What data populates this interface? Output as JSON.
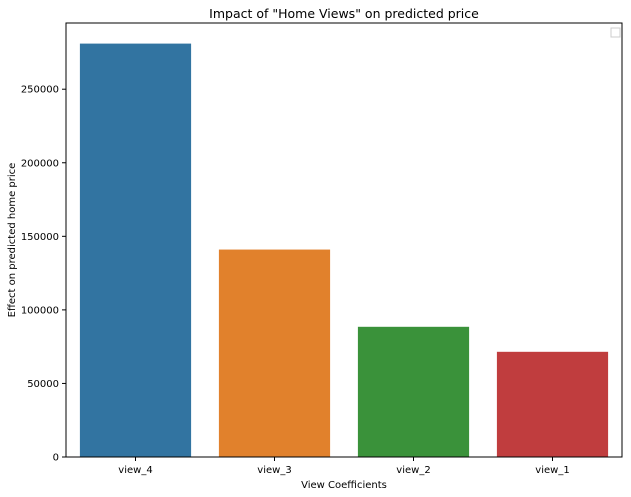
{
  "chart_data": {
    "type": "bar",
    "title": "Impact of \"Home Views\" on predicted price",
    "xlabel": "View Coefficients",
    "ylabel": "Effect on predicted home price",
    "categories": [
      "view_4",
      "view_3",
      "view_2",
      "view_1"
    ],
    "values": [
      281000,
      141000,
      88500,
      71500
    ],
    "colors": [
      "#3274a1",
      "#e1812c",
      "#3a923a",
      "#c03d3e"
    ],
    "ylim": [
      0,
      295000
    ],
    "yticks": [
      0,
      50000,
      100000,
      150000,
      200000,
      250000
    ],
    "ytick_labels": [
      "0",
      "50000",
      "100000",
      "150000",
      "200000",
      "250000"
    ],
    "grid": false,
    "legend": {
      "placement": "top-right",
      "entries": []
    }
  }
}
